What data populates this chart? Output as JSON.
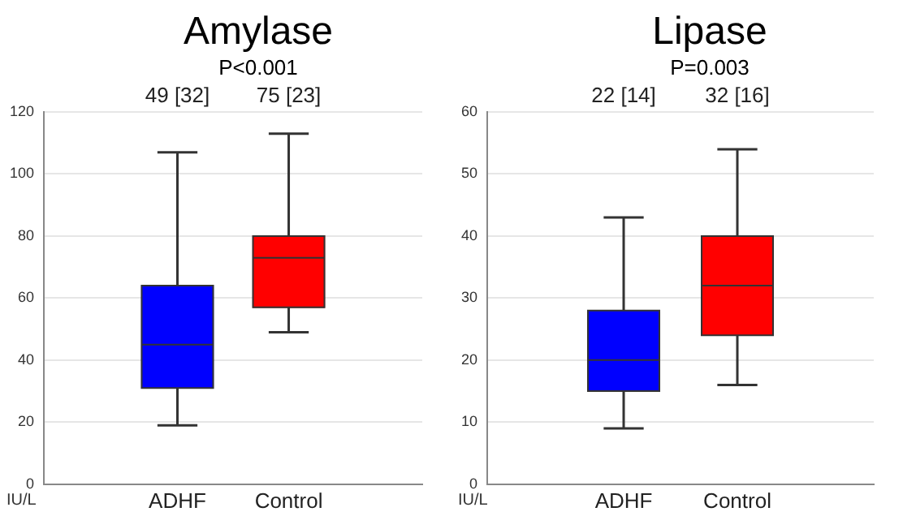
{
  "chart_data": [
    {
      "type": "box",
      "title": "Amylase",
      "subtitle": "P<0.001",
      "ylabel": "IU/L",
      "categories": [
        "ADHF",
        "Control"
      ],
      "colors": [
        "#0000ff",
        "#ff0000"
      ],
      "boxes": [
        {
          "low": 19,
          "q1": 31,
          "median": 45,
          "q3": 64,
          "high": 107
        },
        {
          "low": 49,
          "q1": 57,
          "median": 73,
          "q3": 80,
          "high": 113
        }
      ],
      "annotations": [
        "49 [32]",
        "75 [23]"
      ],
      "ylim": [
        0,
        120
      ],
      "yticks": [
        0,
        20,
        40,
        60,
        80,
        100,
        120
      ],
      "grid": "y",
      "legend": false
    },
    {
      "type": "box",
      "title": "Lipase",
      "subtitle": "P=0.003",
      "ylabel": "IU/L",
      "categories": [
        "ADHF",
        "Control"
      ],
      "colors": [
        "#0000ff",
        "#ff0000"
      ],
      "boxes": [
        {
          "low": 9,
          "q1": 15,
          "median": 20,
          "q3": 28,
          "high": 43
        },
        {
          "low": 16,
          "q1": 24,
          "median": 32,
          "q3": 40,
          "high": 54
        }
      ],
      "annotations": [
        "22 [14]",
        "32 [16]"
      ],
      "ylim": [
        0,
        60
      ],
      "yticks": [
        0,
        10,
        20,
        30,
        40,
        50,
        60
      ],
      "grid": "y",
      "legend": false
    }
  ]
}
